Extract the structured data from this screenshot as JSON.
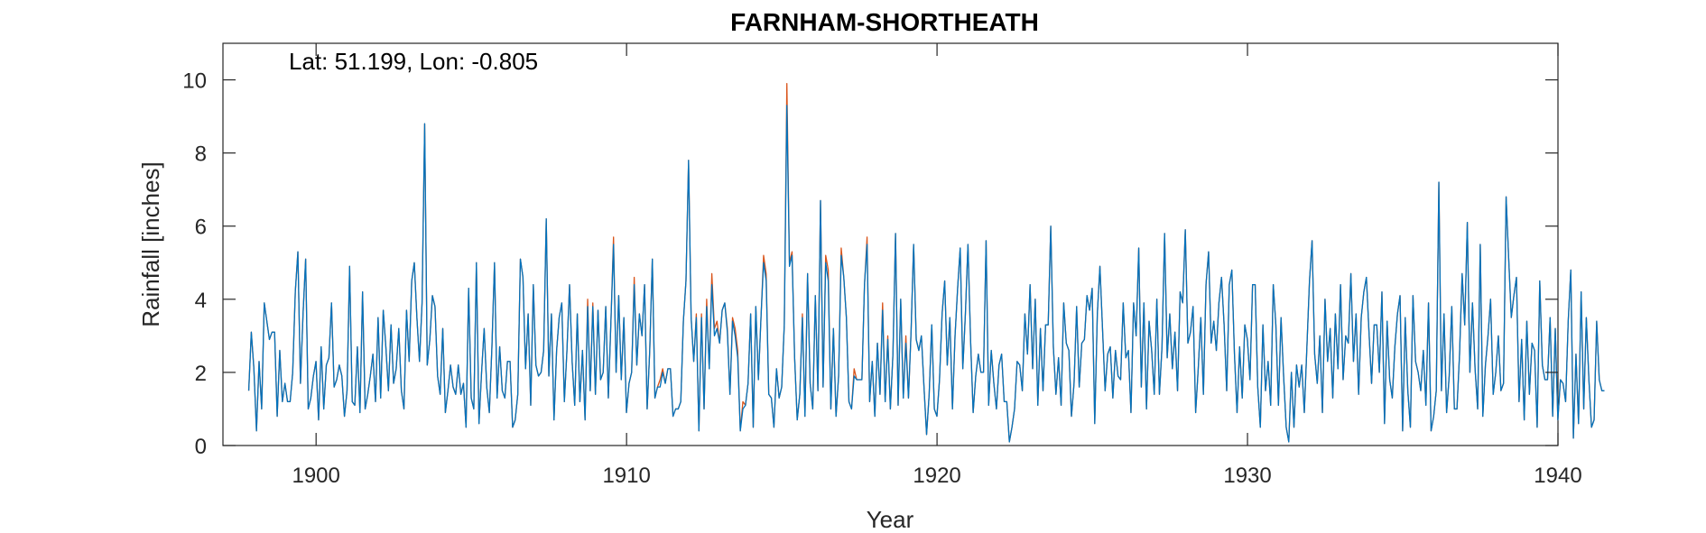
{
  "chart_data": {
    "type": "line",
    "title": "FARNHAM-SHORTHEATH",
    "annotation": "Lat: 51.199, Lon: -0.805",
    "xlabel": "Year",
    "ylabel": "Rainfall [inches]",
    "xlim": [
      1897,
      1940
    ],
    "ylim": [
      0,
      11
    ],
    "x_ticks": [
      1900,
      1910,
      1920,
      1930,
      1940
    ],
    "y_ticks": [
      0,
      2,
      4,
      6,
      8,
      10
    ],
    "grid": false,
    "series": [
      {
        "color": "#D95319",
        "x_start": 1897.83,
        "x_step": 0.0833333,
        "values": [
          1.5,
          3.1,
          2.1,
          0.4,
          2.3,
          1.0,
          3.9,
          3.4,
          2.9,
          3.1,
          3.1,
          0.8,
          2.6,
          1.2,
          1.7,
          1.2,
          1.2,
          2.0,
          4.2,
          5.3,
          1.7,
          3.6,
          5.1,
          1.0,
          1.3,
          1.9,
          2.3,
          0.7,
          2.7,
          1.0,
          2.2,
          2.4,
          3.9,
          1.6,
          1.8,
          2.2,
          1.9,
          0.8,
          1.5,
          4.9,
          1.2,
          1.1,
          2.7,
          0.9,
          4.2,
          1.0,
          1.4,
          1.9,
          2.5,
          1.2,
          3.5,
          1.3,
          3.7,
          2.7,
          1.5,
          3.3,
          1.7,
          2.1,
          3.2,
          1.5,
          1.0,
          3.7,
          2.3,
          4.5,
          5.0,
          3.5,
          2.3,
          3.9,
          8.8,
          2.2,
          2.9,
          4.1,
          3.8,
          1.9,
          1.4,
          3.2,
          0.9,
          1.5,
          2.2,
          1.6,
          1.4,
          2.2,
          1.4,
          1.7,
          0.5,
          4.3,
          1.3,
          1.0,
          5.0,
          0.6,
          2.0,
          3.2,
          1.6,
          0.9,
          2.7,
          5.0,
          1.3,
          2.7,
          1.5,
          1.3,
          2.3,
          2.3,
          0.5,
          0.7,
          1.4,
          5.1,
          4.6,
          2.1,
          3.6,
          1.1,
          4.4,
          2.2,
          1.9,
          2.0,
          2.6,
          6.2,
          1.9,
          3.6,
          0.7,
          2.6,
          3.5,
          3.9,
          1.2,
          2.6,
          4.4,
          2.3,
          1.1,
          3.6,
          1.2,
          2.6,
          0.7,
          4.0,
          1.5,
          3.9,
          1.4,
          3.7,
          1.8,
          2.0,
          3.8,
          1.3,
          3.4,
          5.7,
          2.0,
          4.1,
          1.8,
          3.5,
          0.9,
          1.7,
          2.0,
          4.6,
          2.2,
          3.6,
          3.0,
          4.4,
          1.0,
          2.6,
          5.1,
          1.3,
          1.6,
          1.8,
          2.1,
          1.7,
          2.1,
          2.1,
          0.8,
          1.0,
          1.0,
          1.2,
          3.4,
          4.5,
          7.8,
          3.5,
          2.3,
          3.6,
          0.4,
          3.6,
          1.0,
          4.0,
          2.1,
          4.7,
          3.2,
          3.4,
          2.8,
          3.7,
          3.9,
          3.2,
          1.4,
          3.5,
          3.2,
          2.6,
          0.4,
          1.2,
          1.1,
          1.7,
          3.6,
          0.5,
          3.8,
          1.8,
          3.5,
          5.2,
          4.7,
          1.4,
          1.3,
          0.5,
          2.1,
          1.3,
          1.6,
          3.3,
          9.9,
          5.0,
          5.3,
          2.4,
          0.7,
          1.4,
          3.6,
          0.8,
          4.7,
          1.7,
          1.0,
          4.1,
          1.5,
          6.7,
          1.6,
          5.2,
          4.8,
          1.0,
          3.2,
          0.8,
          1.9,
          5.4,
          4.6,
          3.5,
          1.2,
          1.0,
          2.1,
          1.8,
          1.8,
          1.8,
          4.4,
          5.7,
          1.2,
          2.3,
          0.8,
          2.8,
          1.4,
          3.9,
          1.2,
          3.0,
          1.0,
          2.5,
          5.8,
          1.1,
          4.0,
          1.3,
          3.0,
          1.3,
          3.1,
          5.5,
          2.9,
          2.6,
          3.0,
          1.6,
          0.3,
          1.4,
          3.3,
          1.0,
          0.8,
          1.8,
          3.6,
          4.5,
          2.2,
          3.5,
          1.0,
          3.0,
          4.3,
          5.4,
          2.1,
          3.6,
          5.5,
          2.9,
          0.9,
          1.9,
          2.5,
          2.0,
          2.0,
          5.6,
          1.1,
          2.6,
          1.7,
          1.0,
          2.2,
          2.5,
          1.2,
          1.2,
          0.1,
          0.5,
          1.0,
          2.3,
          2.2,
          1.5,
          3.6,
          2.5,
          4.4,
          2.1,
          4.0,
          1.1,
          3.2,
          1.5,
          3.3,
          3.3,
          6.0,
          2.7,
          1.4,
          2.4,
          1.1,
          3.9,
          2.8,
          2.6,
          0.8,
          1.7,
          3.8,
          1.6,
          2.8,
          2.9,
          4.1,
          3.7,
          4.3,
          0.6,
          3.6,
          4.9,
          3.2,
          1.5,
          2.5,
          2.7,
          1.3,
          2.6,
          1.9,
          1.8,
          3.9,
          2.4,
          2.6,
          0.9,
          3.9,
          3.0,
          5.4,
          1.6,
          3.9,
          1.0,
          3.4,
          2.6,
          1.4,
          4.0,
          1.4,
          2.7,
          5.8,
          2.4,
          3.6,
          2.1,
          3.1,
          1.5,
          4.2,
          3.9,
          5.9,
          2.8,
          3.1,
          3.8,
          0.9,
          2.1,
          3.5,
          1.4,
          4.4,
          5.3,
          2.8,
          3.4,
          2.6,
          3.9,
          4.6,
          3.3,
          1.5,
          4.4,
          4.8,
          2.5,
          0.9,
          2.7,
          1.3,
          3.3,
          2.9,
          1.8,
          4.4,
          4.4,
          1.6,
          0.5,
          3.3,
          1.5,
          2.3,
          1.1,
          4.4,
          3.3,
          1.1,
          3.5,
          1.9,
          0.5,
          0.1,
          2.0,
          0.5,
          2.2,
          1.6,
          2.2,
          0.9,
          2.7,
          4.5,
          5.6,
          2.5,
          1.7,
          3.0,
          0.9,
          4.0,
          2.3,
          3.2,
          1.3,
          3.6,
          2.1,
          4.4,
          1.8,
          3.0,
          2.8,
          4.7,
          2.3,
          3.6,
          1.4,
          3.5,
          4.2,
          4.6,
          3.1,
          1.7,
          3.3,
          3.3,
          2.0,
          4.2,
          0.6,
          3.4,
          1.8,
          1.3,
          2.7,
          3.6,
          4.1,
          0.4,
          3.5,
          1.5,
          0.5,
          4.1,
          2.3,
          2.0,
          1.5,
          2.6,
          1.1,
          3.9,
          0.4,
          0.8,
          1.5,
          7.2,
          1.5,
          3.6,
          0.9,
          1.9,
          3.8,
          1.0,
          1.0,
          2.5,
          4.7,
          3.3,
          6.1,
          2.0,
          3.9,
          2.1,
          1.0,
          5.5,
          0.8,
          2.2,
          3.0,
          4.0,
          1.4,
          2.0,
          3.0,
          1.5,
          1.7,
          6.8,
          5.1,
          3.5,
          4.1,
          4.6,
          1.2,
          2.9,
          0.7,
          3.4,
          1.4,
          2.8,
          2.6,
          0.5,
          4.5,
          2.2,
          1.8,
          1.8,
          3.5,
          0.8,
          3.2,
          0.7,
          1.8,
          1.7,
          1.2,
          3.4,
          4.8,
          0.2,
          2.5,
          0.6,
          4.2,
          1.0,
          3.5,
          1.8,
          0.5,
          0.7,
          3.4,
          1.8,
          1.5,
          1.5
        ]
      },
      {
        "color": "#0072BD",
        "x_start": 1897.83,
        "x_step": 0.0833333,
        "values": [
          1.5,
          3.1,
          2.1,
          0.4,
          2.3,
          1.0,
          3.9,
          3.4,
          2.9,
          3.1,
          3.1,
          0.8,
          2.6,
          1.2,
          1.7,
          1.2,
          1.2,
          2.0,
          4.2,
          5.3,
          1.7,
          3.6,
          5.1,
          1.0,
          1.3,
          1.9,
          2.3,
          0.7,
          2.7,
          1.0,
          2.2,
          2.4,
          3.9,
          1.6,
          1.8,
          2.2,
          1.9,
          0.8,
          1.5,
          4.9,
          1.2,
          1.1,
          2.7,
          0.9,
          4.2,
          1.0,
          1.4,
          1.9,
          2.5,
          1.2,
          3.5,
          1.3,
          3.7,
          2.7,
          1.5,
          3.3,
          1.7,
          2.1,
          3.2,
          1.5,
          1.0,
          3.7,
          2.3,
          4.5,
          5.0,
          3.5,
          2.3,
          3.9,
          8.8,
          2.2,
          2.9,
          4.1,
          3.8,
          1.9,
          1.4,
          3.2,
          0.9,
          1.5,
          2.2,
          1.6,
          1.4,
          2.2,
          1.4,
          1.7,
          0.5,
          4.3,
          1.3,
          1.0,
          5.0,
          0.6,
          2.0,
          3.2,
          1.6,
          0.9,
          2.7,
          5.0,
          1.3,
          2.7,
          1.5,
          1.3,
          2.3,
          2.3,
          0.5,
          0.7,
          1.4,
          5.1,
          4.6,
          2.1,
          3.6,
          1.1,
          4.4,
          2.2,
          1.9,
          2.0,
          2.6,
          6.2,
          1.9,
          3.6,
          0.7,
          2.6,
          3.5,
          3.9,
          1.2,
          2.6,
          4.4,
          2.3,
          1.1,
          3.6,
          1.2,
          2.6,
          0.7,
          3.8,
          1.5,
          3.8,
          1.4,
          3.7,
          1.8,
          2.0,
          3.8,
          1.3,
          3.4,
          5.5,
          2.0,
          4.1,
          1.8,
          3.5,
          0.9,
          1.7,
          2.0,
          4.4,
          2.2,
          3.6,
          3.0,
          4.4,
          1.0,
          2.6,
          5.1,
          1.3,
          1.6,
          1.6,
          2.0,
          1.7,
          2.1,
          2.1,
          0.8,
          1.0,
          1.0,
          1.2,
          3.4,
          4.5,
          7.8,
          3.5,
          2.3,
          3.5,
          0.4,
          3.5,
          1.0,
          3.8,
          2.1,
          4.4,
          3.0,
          3.2,
          2.8,
          3.7,
          3.9,
          3.1,
          1.4,
          3.4,
          3.0,
          2.4,
          0.4,
          1.0,
          1.1,
          1.7,
          3.6,
          0.5,
          3.8,
          1.8,
          3.5,
          5.0,
          4.5,
          1.4,
          1.3,
          0.5,
          2.1,
          1.3,
          1.6,
          3.3,
          9.3,
          4.9,
          5.2,
          2.4,
          0.7,
          1.4,
          3.5,
          0.8,
          4.7,
          1.7,
          1.0,
          4.1,
          1.5,
          6.7,
          1.6,
          5.0,
          4.5,
          1.0,
          3.2,
          0.8,
          1.9,
          5.2,
          4.6,
          3.5,
          1.2,
          1.0,
          1.9,
          1.8,
          1.8,
          1.8,
          4.4,
          5.5,
          1.2,
          2.3,
          0.8,
          2.8,
          1.4,
          3.7,
          1.2,
          2.9,
          1.0,
          2.5,
          5.8,
          1.1,
          4.0,
          1.3,
          2.8,
          1.3,
          3.1,
          5.5,
          2.9,
          2.6,
          3.0,
          1.6,
          0.3,
          1.4,
          3.3,
          1.0,
          0.8,
          1.8,
          3.6,
          4.5,
          2.2,
          3.5,
          1.0,
          3.0,
          4.3,
          5.4,
          2.1,
          3.6,
          5.5,
          2.9,
          0.9,
          1.9,
          2.5,
          2.0,
          2.0,
          5.6,
          1.1,
          2.6,
          1.7,
          1.0,
          2.2,
          2.5,
          1.2,
          1.2,
          0.1,
          0.5,
          1.0,
          2.3,
          2.2,
          1.5,
          3.6,
          2.5,
          4.4,
          2.1,
          4.0,
          1.1,
          3.2,
          1.5,
          3.3,
          3.3,
          6.0,
          2.7,
          1.4,
          2.4,
          1.1,
          3.9,
          2.8,
          2.6,
          0.8,
          1.7,
          3.8,
          1.6,
          2.8,
          2.9,
          4.1,
          3.7,
          4.3,
          0.6,
          3.6,
          4.9,
          3.2,
          1.5,
          2.5,
          2.7,
          1.3,
          2.6,
          1.9,
          1.8,
          3.9,
          2.4,
          2.6,
          0.9,
          3.9,
          3.0,
          5.4,
          1.6,
          3.9,
          1.0,
          3.4,
          2.6,
          1.4,
          4.0,
          1.4,
          2.7,
          5.8,
          2.4,
          3.6,
          2.1,
          3.1,
          1.5,
          4.2,
          3.9,
          5.9,
          2.8,
          3.1,
          3.8,
          0.9,
          2.1,
          3.5,
          1.4,
          4.4,
          5.3,
          2.8,
          3.4,
          2.6,
          3.9,
          4.6,
          3.3,
          1.5,
          4.4,
          4.8,
          2.5,
          0.9,
          2.7,
          1.3,
          3.3,
          2.9,
          1.8,
          4.4,
          4.4,
          1.6,
          0.5,
          3.3,
          1.5,
          2.3,
          1.1,
          4.4,
          3.3,
          1.1,
          3.5,
          1.9,
          0.5,
          0.1,
          2.0,
          0.5,
          2.2,
          1.6,
          2.2,
          0.9,
          2.7,
          4.5,
          5.6,
          2.5,
          1.7,
          3.0,
          0.9,
          4.0,
          2.3,
          3.2,
          1.3,
          3.6,
          2.1,
          4.4,
          1.8,
          3.0,
          2.8,
          4.7,
          2.3,
          3.6,
          1.4,
          3.5,
          4.2,
          4.6,
          3.1,
          1.7,
          3.3,
          3.3,
          2.0,
          4.2,
          0.6,
          3.4,
          1.8,
          1.3,
          2.7,
          3.6,
          4.1,
          0.4,
          3.5,
          1.5,
          0.5,
          4.1,
          2.3,
          2.0,
          1.5,
          2.6,
          1.1,
          3.9,
          0.4,
          0.8,
          1.5,
          7.2,
          1.5,
          3.6,
          0.9,
          1.9,
          3.8,
          1.0,
          1.0,
          2.5,
          4.7,
          3.3,
          6.1,
          2.0,
          3.9,
          2.1,
          1.0,
          5.5,
          0.8,
          2.2,
          3.0,
          4.0,
          1.4,
          2.0,
          3.0,
          1.5,
          1.7,
          6.8,
          5.1,
          3.5,
          4.1,
          4.6,
          1.2,
          2.9,
          0.7,
          3.4,
          1.4,
          2.8,
          2.6,
          0.5,
          4.5,
          2.2,
          1.8,
          1.8,
          3.5,
          0.8,
          3.2,
          0.7,
          1.8,
          1.7,
          1.2,
          3.4,
          4.8,
          0.2,
          2.5,
          0.6,
          4.2,
          1.0,
          3.5,
          1.8,
          0.5,
          0.7,
          3.4,
          1.8,
          1.5,
          1.5
        ]
      }
    ]
  }
}
